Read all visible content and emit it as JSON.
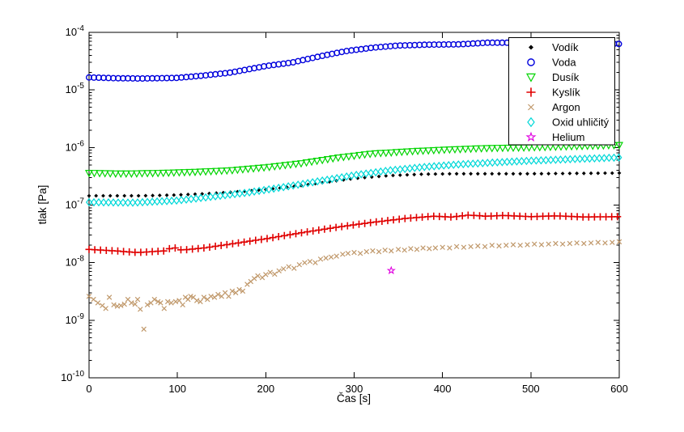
{
  "figure": {
    "background": "#ffffff"
  },
  "chart_data": {
    "type": "scatter",
    "title": "",
    "xlabel": "Čas [s]",
    "ylabel": "tlak [Pa]",
    "xlim": [
      0,
      600
    ],
    "x_ticks": [
      0,
      100,
      200,
      300,
      400,
      500,
      600
    ],
    "y_scale": "log10",
    "ylim": [
      1e-10,
      0.0001
    ],
    "y_tick_exponents": [
      -4,
      -5,
      -6,
      -7,
      -8,
      -9,
      -10
    ],
    "grid": false,
    "legend_position": "top-right",
    "series": [
      {
        "name": "Vodík",
        "color": "#000000",
        "marker": "point",
        "marker_dt": 8,
        "points": [
          [
            0,
            1.45e-07
          ],
          [
            60,
            1.45e-07
          ],
          [
            100,
            1.5e-07
          ],
          [
            140,
            1.6e-07
          ],
          [
            180,
            1.75e-07
          ],
          [
            220,
            2e-07
          ],
          [
            260,
            2.4e-07
          ],
          [
            300,
            2.9e-07
          ],
          [
            340,
            3.25e-07
          ],
          [
            380,
            3.45e-07
          ],
          [
            420,
            3.5e-07
          ],
          [
            500,
            3.5e-07
          ],
          [
            600,
            3.6e-07
          ]
        ]
      },
      {
        "name": "Voda",
        "color": "#0000dd",
        "marker": "circle",
        "marker_dt": 5.5,
        "points": [
          [
            0,
            1.65e-05
          ],
          [
            30,
            1.6e-05
          ],
          [
            60,
            1.58e-05
          ],
          [
            100,
            1.62e-05
          ],
          [
            130,
            1.78e-05
          ],
          [
            160,
            2e-05
          ],
          [
            200,
            2.6e-05
          ],
          [
            230,
            3e-05
          ],
          [
            260,
            3.8e-05
          ],
          [
            290,
            4.7e-05
          ],
          [
            320,
            5.4e-05
          ],
          [
            350,
            5.9e-05
          ],
          [
            380,
            6.1e-05
          ],
          [
            420,
            6.2e-05
          ],
          [
            450,
            6.6e-05
          ],
          [
            480,
            6.6e-05
          ],
          [
            520,
            6.5e-05
          ],
          [
            560,
            6.4e-05
          ],
          [
            600,
            6.3e-05
          ]
        ]
      },
      {
        "name": "Dusík",
        "color": "#00d400",
        "marker": "triangle-down",
        "marker_dt": 6,
        "points": [
          [
            0,
            3.6e-07
          ],
          [
            40,
            3.5e-07
          ],
          [
            80,
            3.6e-07
          ],
          [
            120,
            3.75e-07
          ],
          [
            160,
            4e-07
          ],
          [
            200,
            4.5e-07
          ],
          [
            240,
            5.3e-07
          ],
          [
            280,
            6.6e-07
          ],
          [
            320,
            7.8e-07
          ],
          [
            360,
            8.5e-07
          ],
          [
            400,
            9.1e-07
          ],
          [
            450,
            9.7e-07
          ],
          [
            500,
            1e-06
          ],
          [
            550,
            1.05e-06
          ],
          [
            600,
            1.1e-06
          ]
        ]
      },
      {
        "name": "Kyslík",
        "color": "#e00000",
        "marker": "plus",
        "marker_dt": 6.5,
        "points": [
          [
            0,
            1.7e-08
          ],
          [
            30,
            1.6e-08
          ],
          [
            55,
            1.5e-08
          ],
          [
            70,
            1.55e-08
          ],
          [
            85,
            1.6e-08
          ],
          [
            95,
            1.85e-08
          ],
          [
            105,
            1.65e-08
          ],
          [
            130,
            1.8e-08
          ],
          [
            160,
            2.1e-08
          ],
          [
            200,
            2.6e-08
          ],
          [
            240,
            3.3e-08
          ],
          [
            280,
            4.1e-08
          ],
          [
            320,
            5e-08
          ],
          [
            360,
            5.9e-08
          ],
          [
            390,
            6.4e-08
          ],
          [
            410,
            6.2e-08
          ],
          [
            430,
            6.7e-08
          ],
          [
            450,
            6.4e-08
          ],
          [
            470,
            6.6e-08
          ],
          [
            500,
            6.3e-08
          ],
          [
            530,
            6.5e-08
          ],
          [
            560,
            6.2e-08
          ],
          [
            600,
            6.3e-08
          ]
        ]
      },
      {
        "name": "Argon",
        "color": "#c0986a",
        "marker": "x",
        "points": [
          [
            0,
            2.6e-09
          ],
          [
            5,
            2.3e-09
          ],
          [
            10,
            2e-09
          ],
          [
            15,
            1.8e-09
          ],
          [
            19,
            1.6e-09
          ],
          [
            23,
            2.5e-09
          ],
          [
            28,
            1.85e-09
          ],
          [
            32,
            1.75e-09
          ],
          [
            36,
            1.8e-09
          ],
          [
            40,
            1.9e-09
          ],
          [
            44,
            2.3e-09
          ],
          [
            48,
            2e-09
          ],
          [
            52,
            1.9e-09
          ],
          [
            55,
            2.3e-09
          ],
          [
            58,
            1.55e-09
          ],
          [
            62,
            7e-10
          ],
          [
            66,
            1.85e-09
          ],
          [
            70,
            2e-09
          ],
          [
            74,
            2.3e-09
          ],
          [
            78,
            2.1e-09
          ],
          [
            81,
            2e-09
          ],
          [
            85,
            1.6e-09
          ],
          [
            89,
            2.1e-09
          ],
          [
            93,
            2e-09
          ],
          [
            98,
            2.1e-09
          ],
          [
            102,
            2.2e-09
          ],
          [
            106,
            1.85e-09
          ],
          [
            109,
            2.5e-09
          ],
          [
            112,
            2.3e-09
          ],
          [
            115,
            2.6e-09
          ],
          [
            118,
            2.5e-09
          ],
          [
            122,
            2.2e-09
          ],
          [
            126,
            2.1e-09
          ],
          [
            130,
            2.5e-09
          ],
          [
            134,
            2.3e-09
          ],
          [
            138,
            2.6e-09
          ],
          [
            142,
            2.5e-09
          ],
          [
            146,
            2.8e-09
          ],
          [
            150,
            2.6e-09
          ],
          [
            154,
            3e-09
          ],
          [
            158,
            2.6e-09
          ],
          [
            162,
            3.2e-09
          ],
          [
            166,
            3e-09
          ],
          [
            170,
            3.4e-09
          ],
          [
            174,
            3.2e-09
          ],
          [
            179,
            4.2e-09
          ],
          [
            183,
            4.7e-09
          ],
          [
            187,
            5.3e-09
          ],
          [
            191,
            5.9e-09
          ],
          [
            196,
            5.5e-09
          ],
          [
            200,
            6.2e-09
          ],
          [
            205,
            6.8e-09
          ],
          [
            210,
            6.3e-09
          ],
          [
            215,
            7.2e-09
          ],
          [
            220,
            7.8e-09
          ],
          [
            226,
            8.5e-09
          ],
          [
            232,
            8e-09
          ],
          [
            238,
            9.2e-09
          ],
          [
            244,
            1e-08
          ],
          [
            250,
            1.05e-08
          ],
          [
            256,
            1e-08
          ],
          [
            262,
            1.15e-08
          ],
          [
            268,
            1.2e-08
          ],
          [
            274,
            1.25e-08
          ],
          [
            280,
            1.3e-08
          ],
          [
            287,
            1.4e-08
          ],
          [
            293,
            1.45e-08
          ],
          [
            300,
            1.5e-08
          ],
          [
            307,
            1.45e-08
          ],
          [
            314,
            1.55e-08
          ],
          [
            321,
            1.6e-08
          ],
          [
            328,
            1.55e-08
          ],
          [
            335,
            1.65e-08
          ],
          [
            342,
            1.6e-08
          ],
          [
            350,
            1.7e-08
          ],
          [
            357,
            1.65e-08
          ],
          [
            364,
            1.75e-08
          ],
          [
            371,
            1.7e-08
          ],
          [
            378,
            1.8e-08
          ],
          [
            385,
            1.75e-08
          ],
          [
            392,
            1.8e-08
          ],
          [
            400,
            1.85e-08
          ],
          [
            408,
            1.8e-08
          ],
          [
            416,
            1.9e-08
          ],
          [
            424,
            1.85e-08
          ],
          [
            432,
            1.9e-08
          ],
          [
            440,
            1.95e-08
          ],
          [
            448,
            1.9e-08
          ],
          [
            456,
            2e-08
          ],
          [
            464,
            1.95e-08
          ],
          [
            472,
            2e-08
          ],
          [
            480,
            2.05e-08
          ],
          [
            488,
            2e-08
          ],
          [
            496,
            2.05e-08
          ],
          [
            504,
            2.1e-08
          ],
          [
            512,
            2.05e-08
          ],
          [
            520,
            2.1e-08
          ],
          [
            528,
            2.15e-08
          ],
          [
            536,
            2.1e-08
          ],
          [
            544,
            2.15e-08
          ],
          [
            552,
            2.2e-08
          ],
          [
            560,
            2.15e-08
          ],
          [
            568,
            2.2e-08
          ],
          [
            576,
            2.25e-08
          ],
          [
            584,
            2.2e-08
          ],
          [
            592,
            2.25e-08
          ],
          [
            600,
            2.3e-08
          ]
        ]
      },
      {
        "name": "Oxid uhličitý",
        "color": "#00d8d8",
        "marker": "diamond",
        "marker_dt": 5.5,
        "points": [
          [
            0,
            1.12e-07
          ],
          [
            50,
            1.1e-07
          ],
          [
            100,
            1.2e-07
          ],
          [
            140,
            1.4e-07
          ],
          [
            180,
            1.65e-07
          ],
          [
            220,
            2.05e-07
          ],
          [
            260,
            2.6e-07
          ],
          [
            300,
            3.3e-07
          ],
          [
            340,
            4e-07
          ],
          [
            380,
            4.6e-07
          ],
          [
            420,
            5.1e-07
          ],
          [
            460,
            5.5e-07
          ],
          [
            500,
            5.9e-07
          ],
          [
            550,
            6.3e-07
          ],
          [
            600,
            6.7e-07
          ]
        ]
      },
      {
        "name": "Helium",
        "color": "#e000e0",
        "marker": "pentagram",
        "points": [
          [
            342,
            7.3e-09
          ]
        ]
      }
    ]
  },
  "legend": {
    "items": [
      "Vodík",
      "Voda",
      "Dusík",
      "Kyslík",
      "Argon",
      "Oxid uhličitý",
      "Helium"
    ]
  }
}
